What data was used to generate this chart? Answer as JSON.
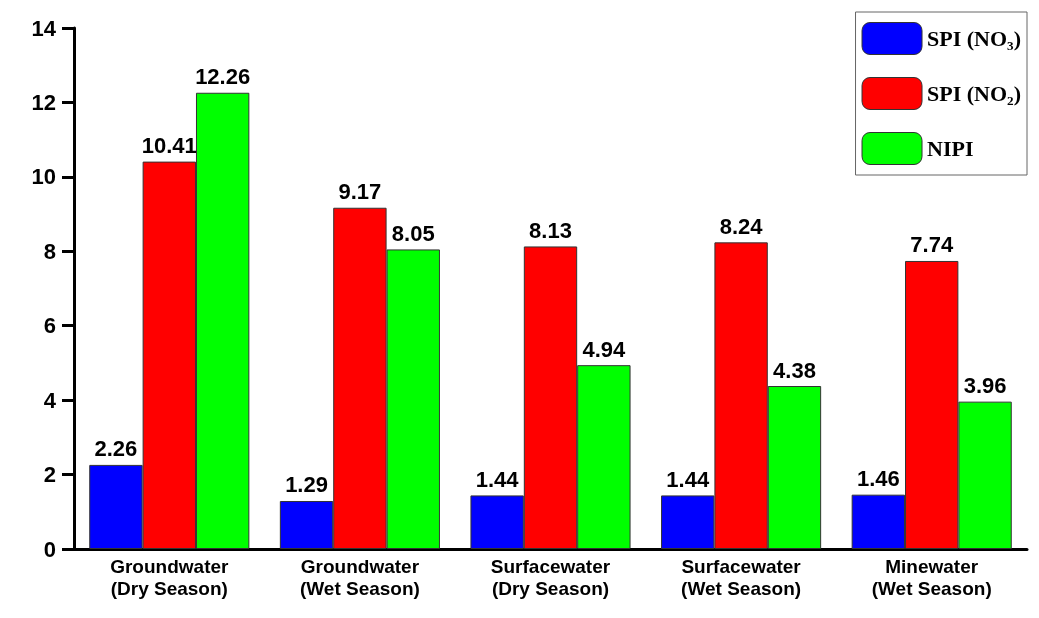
{
  "chart_data": {
    "type": "bar",
    "categories": [
      "Groundwater\n(Dry Season)",
      "Groundwater\n(Wet Season)",
      "Surfacewater\n(Dry Season)",
      "Surfacewater\n(Wet Season)",
      "Minewater\n(Wet Season)"
    ],
    "series": [
      {
        "name": "SPI (NO₃)",
        "color": "#0000ff",
        "values": [
          2.26,
          1.29,
          1.44,
          1.44,
          1.46
        ]
      },
      {
        "name": "SPI (NO₂)",
        "color": "#ff0000",
        "values": [
          10.41,
          9.17,
          8.13,
          8.24,
          7.74
        ]
      },
      {
        "name": "NIPI",
        "color": "#00ff00",
        "values": [
          12.26,
          8.05,
          4.94,
          4.38,
          3.96
        ]
      }
    ],
    "ylim": [
      0,
      14
    ],
    "yticks": [
      0,
      2,
      4,
      6,
      8,
      10,
      12,
      14
    ],
    "data_labels": true,
    "grid": false,
    "legend": "top right"
  }
}
